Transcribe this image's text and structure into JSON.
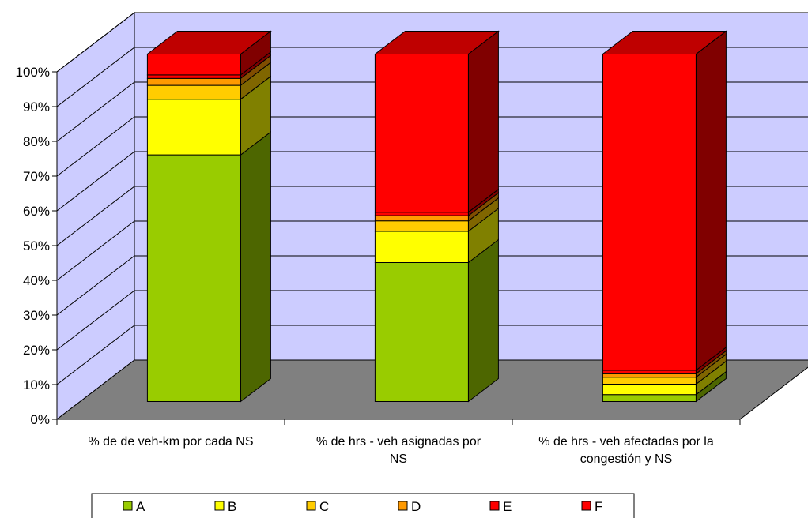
{
  "chart_data": {
    "type": "bar",
    "stacked": true,
    "three_d": true,
    "title": "",
    "xlabel": "",
    "ylabel": "",
    "ylim": [
      0,
      100
    ],
    "yticks": [
      "0%",
      "10%",
      "20%",
      "30%",
      "40%",
      "50%",
      "60%",
      "70%",
      "80%",
      "90%",
      "100%"
    ],
    "grid": true,
    "legend_position": "bottom",
    "categories": [
      [
        "% de de veh-km por cada NS"
      ],
      [
        "% de hrs - veh asignadas por",
        "NS"
      ],
      [
        "% de hrs - veh afectadas por la",
        "congestión y NS"
      ]
    ],
    "series": [
      {
        "name": "A",
        "color": "#99CC00",
        "values": [
          71,
          40,
          2
        ]
      },
      {
        "name": "B",
        "color": "#FFFF00",
        "values": [
          16,
          9,
          3
        ]
      },
      {
        "name": "C",
        "color": "#FFCC00",
        "values": [
          4,
          3,
          2
        ]
      },
      {
        "name": "D",
        "color": "#FF9900",
        "values": [
          2,
          1.5,
          1
        ]
      },
      {
        "name": "E",
        "color": "#FF0000",
        "values": [
          1,
          1,
          1
        ]
      },
      {
        "name": "F",
        "color": "#FF0000",
        "values": [
          6,
          45.5,
          91
        ]
      }
    ],
    "colors": {
      "wall": "#CCCCFF",
      "floor": "#808080",
      "gridline": "#000000"
    }
  }
}
